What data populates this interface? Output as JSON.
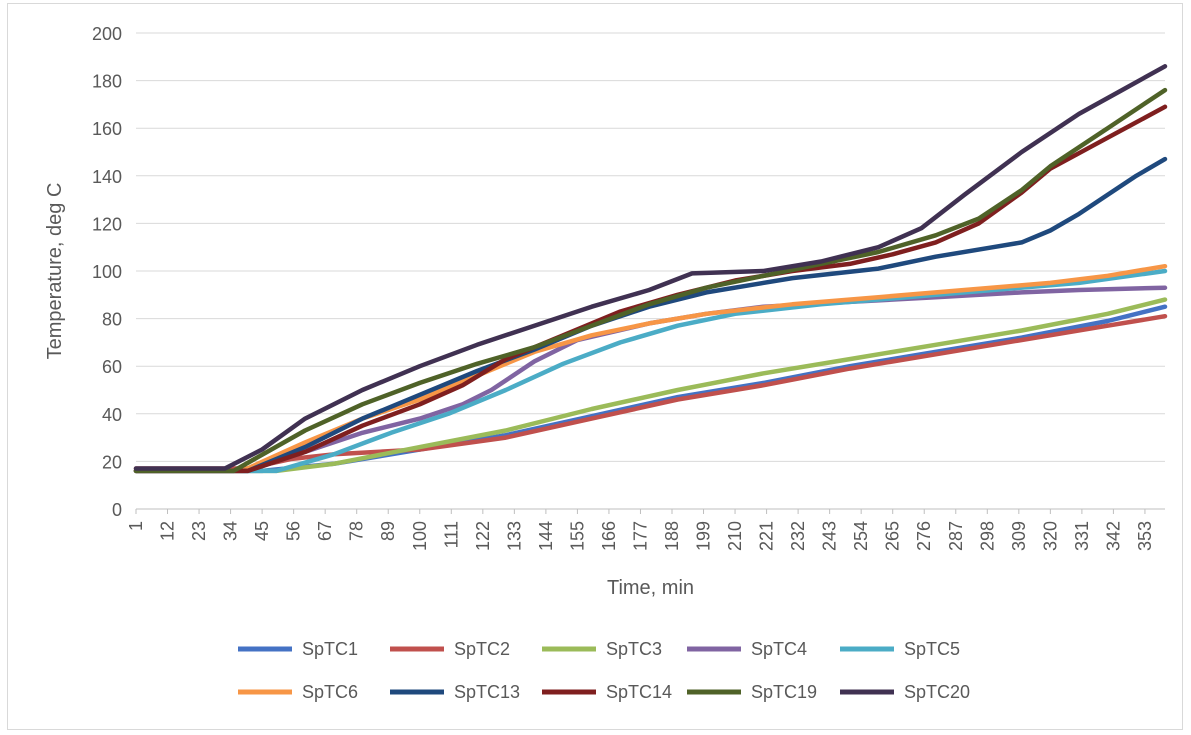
{
  "chart_data": {
    "type": "line",
    "title": "",
    "xlabel": "Time, min",
    "ylabel": "Temperature, deg C",
    "ylim": [
      0,
      200
    ],
    "y_ticks": [
      0,
      20,
      40,
      60,
      80,
      100,
      120,
      140,
      160,
      180,
      200
    ],
    "x_range": [
      1,
      360
    ],
    "x_ticks": [
      "1",
      "12",
      "23",
      "34",
      "45",
      "56",
      "67",
      "78",
      "89",
      "100",
      "111",
      "122",
      "133",
      "144",
      "155",
      "166",
      "177",
      "188",
      "199",
      "210",
      "221",
      "232",
      "243",
      "254",
      "265",
      "276",
      "287",
      "298",
      "309",
      "320",
      "331",
      "342",
      "353"
    ],
    "grid": "horizontal",
    "legend_position": "bottom",
    "series": [
      {
        "name": "SpTC1",
        "color": "#4472c4",
        "points": [
          [
            1,
            16
          ],
          [
            45,
            16
          ],
          [
            70,
            19
          ],
          [
            100,
            25
          ],
          [
            130,
            31
          ],
          [
            160,
            39
          ],
          [
            190,
            47
          ],
          [
            220,
            53
          ],
          [
            250,
            60
          ],
          [
            280,
            66
          ],
          [
            310,
            72
          ],
          [
            340,
            79
          ],
          [
            360,
            85
          ]
        ]
      },
      {
        "name": "SpTC2",
        "color": "#c0504d",
        "points": [
          [
            1,
            17
          ],
          [
            40,
            17
          ],
          [
            55,
            21
          ],
          [
            70,
            23
          ],
          [
            100,
            25
          ],
          [
            130,
            30
          ],
          [
            160,
            38
          ],
          [
            190,
            46
          ],
          [
            220,
            52
          ],
          [
            250,
            59
          ],
          [
            280,
            65
          ],
          [
            310,
            71
          ],
          [
            340,
            77
          ],
          [
            360,
            81
          ]
        ]
      },
      {
        "name": "SpTC3",
        "color": "#9bbb59",
        "points": [
          [
            1,
            16
          ],
          [
            50,
            16
          ],
          [
            70,
            19
          ],
          [
            100,
            26
          ],
          [
            130,
            33
          ],
          [
            160,
            42
          ],
          [
            190,
            50
          ],
          [
            220,
            57
          ],
          [
            250,
            63
          ],
          [
            280,
            69
          ],
          [
            310,
            75
          ],
          [
            340,
            82
          ],
          [
            360,
            88
          ]
        ]
      },
      {
        "name": "SpTC4",
        "color": "#8064a2",
        "points": [
          [
            1,
            16
          ],
          [
            40,
            16
          ],
          [
            60,
            24
          ],
          [
            80,
            32
          ],
          [
            100,
            38
          ],
          [
            115,
            44
          ],
          [
            125,
            50
          ],
          [
            140,
            62
          ],
          [
            155,
            71
          ],
          [
            180,
            78
          ],
          [
            200,
            82
          ],
          [
            220,
            85
          ],
          [
            250,
            87
          ],
          [
            280,
            89
          ],
          [
            310,
            91
          ],
          [
            330,
            92
          ],
          [
            360,
            93
          ]
        ]
      },
      {
        "name": "SpTC5",
        "color": "#4bacc6",
        "points": [
          [
            1,
            16
          ],
          [
            50,
            16
          ],
          [
            70,
            23
          ],
          [
            90,
            32
          ],
          [
            110,
            40
          ],
          [
            130,
            50
          ],
          [
            150,
            61
          ],
          [
            170,
            70
          ],
          [
            190,
            77
          ],
          [
            210,
            82
          ],
          [
            240,
            86
          ],
          [
            270,
            89
          ],
          [
            300,
            92
          ],
          [
            330,
            95
          ],
          [
            360,
            100
          ]
        ]
      },
      {
        "name": "SpTC6",
        "color": "#f79646",
        "points": [
          [
            1,
            16
          ],
          [
            38,
            16
          ],
          [
            60,
            28
          ],
          [
            80,
            38
          ],
          [
            100,
            46
          ],
          [
            120,
            56
          ],
          [
            140,
            66
          ],
          [
            160,
            73
          ],
          [
            180,
            78
          ],
          [
            200,
            82
          ],
          [
            230,
            86
          ],
          [
            260,
            89
          ],
          [
            290,
            92
          ],
          [
            320,
            95
          ],
          [
            340,
            98
          ],
          [
            360,
            102
          ]
        ]
      },
      {
        "name": "SpTC13",
        "color": "#1f497d",
        "points": [
          [
            1,
            16
          ],
          [
            40,
            16
          ],
          [
            60,
            26
          ],
          [
            80,
            38
          ],
          [
            100,
            48
          ],
          [
            120,
            58
          ],
          [
            140,
            67
          ],
          [
            160,
            77
          ],
          [
            180,
            85
          ],
          [
            200,
            91
          ],
          [
            230,
            97
          ],
          [
            260,
            101
          ],
          [
            280,
            106
          ],
          [
            300,
            110
          ],
          [
            310,
            112
          ],
          [
            320,
            117
          ],
          [
            330,
            124
          ],
          [
            340,
            132
          ],
          [
            350,
            140
          ],
          [
            360,
            147
          ]
        ]
      },
      {
        "name": "SpTC14",
        "color": "#7f1f1f",
        "points": [
          [
            1,
            16
          ],
          [
            40,
            16
          ],
          [
            60,
            24
          ],
          [
            80,
            35
          ],
          [
            100,
            44
          ],
          [
            115,
            52
          ],
          [
            130,
            63
          ],
          [
            150,
            73
          ],
          [
            170,
            83
          ],
          [
            190,
            90
          ],
          [
            210,
            96
          ],
          [
            230,
            100
          ],
          [
            250,
            103
          ],
          [
            265,
            107
          ],
          [
            280,
            112
          ],
          [
            295,
            120
          ],
          [
            310,
            133
          ],
          [
            320,
            143
          ],
          [
            340,
            156
          ],
          [
            360,
            169
          ]
        ]
      },
      {
        "name": "SpTC19",
        "color": "#4f6228",
        "points": [
          [
            1,
            16
          ],
          [
            35,
            16
          ],
          [
            60,
            33
          ],
          [
            80,
            44
          ],
          [
            100,
            53
          ],
          [
            120,
            61
          ],
          [
            140,
            68
          ],
          [
            160,
            77
          ],
          [
            180,
            86
          ],
          [
            200,
            93
          ],
          [
            220,
            98
          ],
          [
            240,
            103
          ],
          [
            260,
            108
          ],
          [
            280,
            115
          ],
          [
            295,
            122
          ],
          [
            310,
            134
          ],
          [
            320,
            144
          ],
          [
            340,
            160
          ],
          [
            360,
            176
          ]
        ]
      },
      {
        "name": "SpTC20",
        "color": "#403152",
        "points": [
          [
            1,
            17
          ],
          [
            32,
            17
          ],
          [
            45,
            25
          ],
          [
            60,
            38
          ],
          [
            80,
            50
          ],
          [
            100,
            60
          ],
          [
            120,
            69
          ],
          [
            140,
            77
          ],
          [
            160,
            85
          ],
          [
            180,
            92
          ],
          [
            195,
            99
          ],
          [
            220,
            100
          ],
          [
            240,
            104
          ],
          [
            260,
            110
          ],
          [
            275,
            118
          ],
          [
            290,
            132
          ],
          [
            310,
            150
          ],
          [
            330,
            166
          ],
          [
            345,
            176
          ],
          [
            360,
            186
          ]
        ]
      }
    ]
  }
}
